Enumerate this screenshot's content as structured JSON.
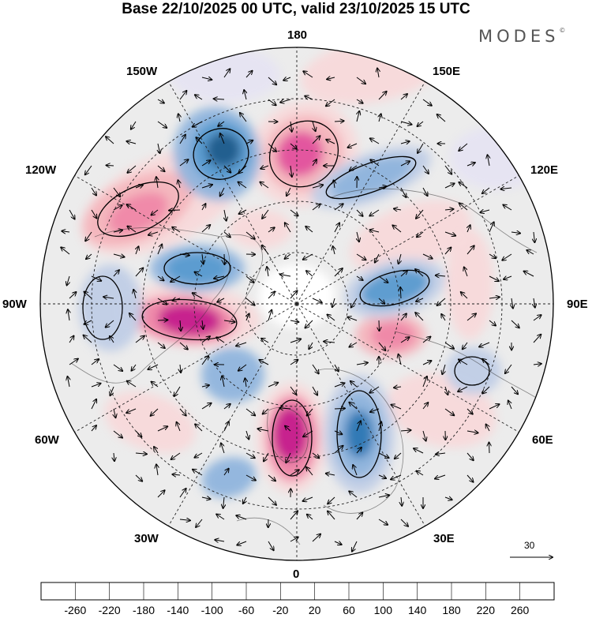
{
  "header": {
    "title": "Base 22/10/2025 00 UTC, valid 23/10/2025 15 UTC",
    "brand": "MODES",
    "brand_mark": "©"
  },
  "map": {
    "projection": "north-polar-stereographic",
    "longitude_labels": {
      "top": "180",
      "bottom": "0",
      "left": "90W",
      "right": "90E",
      "upper_left_1": "150W",
      "upper_left_2": "120W",
      "upper_right_1": "150E",
      "upper_right_2": "120E",
      "lower_left_1": "60W",
      "lower_left_2": "30W",
      "lower_right_1": "60E",
      "lower_right_2": "30E"
    },
    "reference_vector": {
      "value": "30"
    }
  },
  "colorbar": {
    "ticks": [
      "-260",
      "-220",
      "-180",
      "-140",
      "-100",
      "-60",
      "-20",
      "20",
      "60",
      "100",
      "140",
      "180",
      "220",
      "260"
    ],
    "colors": [
      "#163e5f",
      "#1c5b8b",
      "#2d77b3",
      "#5a9bd0",
      "#8fb4dd",
      "#c0cde6",
      "#e6e4f2",
      "#ffffff",
      "#f8d9da",
      "#f4b5bd",
      "#ef87a8",
      "#e2509d",
      "#c41c8c",
      "#8e0f7d",
      "#5c0a6e"
    ],
    "mid_fill": "#ececec"
  }
}
